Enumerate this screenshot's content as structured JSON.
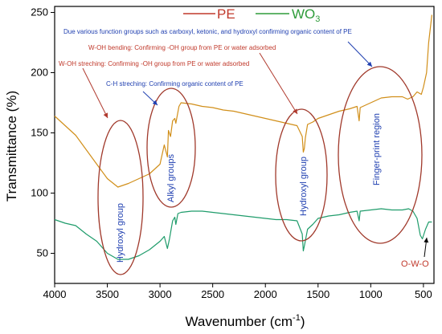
{
  "chart_data": {
    "type": "line",
    "xlabel": "Wavenumber (cm",
    "xlabel_sup": "-1",
    "xlabel_tail": ")",
    "ylabel": "Transmittance (%)",
    "xlim": [
      4000,
      400
    ],
    "ylim": [
      25,
      255
    ],
    "x_reversed": true,
    "xticks": [
      4000,
      3500,
      3000,
      2500,
      2000,
      1500,
      1000,
      500
    ],
    "yticks": [
      50,
      100,
      150,
      200,
      250
    ],
    "grid": false,
    "legend": {
      "placement": "top-center"
    },
    "series": [
      {
        "name": "PE",
        "color": "#d18f1a",
        "legend_color": "#c0392b",
        "points": [
          [
            4000,
            164
          ],
          [
            3900,
            156
          ],
          [
            3800,
            148
          ],
          [
            3700,
            136
          ],
          [
            3600,
            124
          ],
          [
            3500,
            112
          ],
          [
            3400,
            105
          ],
          [
            3300,
            108
          ],
          [
            3200,
            112
          ],
          [
            3100,
            116
          ],
          [
            3000,
            124
          ],
          [
            2960,
            140
          ],
          [
            2930,
            130
          ],
          [
            2920,
            152
          ],
          [
            2900,
            147
          ],
          [
            2880,
            160
          ],
          [
            2860,
            162
          ],
          [
            2850,
            158
          ],
          [
            2820,
            172
          ],
          [
            2800,
            175
          ],
          [
            2700,
            174
          ],
          [
            2600,
            172
          ],
          [
            2500,
            171
          ],
          [
            2400,
            169
          ],
          [
            2300,
            168
          ],
          [
            2200,
            166
          ],
          [
            2100,
            164
          ],
          [
            2000,
            162
          ],
          [
            1900,
            160
          ],
          [
            1800,
            158
          ],
          [
            1700,
            156
          ],
          [
            1650,
            147
          ],
          [
            1640,
            134
          ],
          [
            1630,
            137
          ],
          [
            1620,
            146
          ],
          [
            1600,
            157
          ],
          [
            1550,
            159
          ],
          [
            1500,
            162
          ],
          [
            1400,
            165
          ],
          [
            1300,
            168
          ],
          [
            1200,
            170
          ],
          [
            1130,
            172
          ],
          [
            1110,
            160
          ],
          [
            1100,
            171
          ],
          [
            1000,
            175
          ],
          [
            900,
            179
          ],
          [
            800,
            180
          ],
          [
            700,
            180
          ],
          [
            650,
            178
          ],
          [
            600,
            180
          ],
          [
            560,
            184
          ],
          [
            520,
            182
          ],
          [
            500,
            188
          ],
          [
            470,
            200
          ],
          [
            450,
            225
          ],
          [
            420,
            248
          ]
        ]
      },
      {
        "name": "WO3",
        "name_main": "WO",
        "name_sub": "3",
        "color": "#1f9c6b",
        "legend_color": "#2e9c3a",
        "points": [
          [
            4000,
            78
          ],
          [
            3900,
            75
          ],
          [
            3800,
            73
          ],
          [
            3700,
            66
          ],
          [
            3600,
            60
          ],
          [
            3500,
            50
          ],
          [
            3400,
            45
          ],
          [
            3300,
            45
          ],
          [
            3200,
            48
          ],
          [
            3100,
            53
          ],
          [
            3000,
            60
          ],
          [
            2960,
            64
          ],
          [
            2930,
            54
          ],
          [
            2910,
            62
          ],
          [
            2880,
            77
          ],
          [
            2860,
            80
          ],
          [
            2850,
            74
          ],
          [
            2830,
            83
          ],
          [
            2800,
            84
          ],
          [
            2700,
            85
          ],
          [
            2600,
            85
          ],
          [
            2500,
            84
          ],
          [
            2400,
            83
          ],
          [
            2300,
            82
          ],
          [
            2200,
            81
          ],
          [
            2100,
            80
          ],
          [
            2000,
            79
          ],
          [
            1900,
            78
          ],
          [
            1800,
            78
          ],
          [
            1700,
            77
          ],
          [
            1650,
            66
          ],
          [
            1640,
            52
          ],
          [
            1630,
            56
          ],
          [
            1600,
            70
          ],
          [
            1550,
            74
          ],
          [
            1500,
            79
          ],
          [
            1400,
            81
          ],
          [
            1300,
            82
          ],
          [
            1200,
            84
          ],
          [
            1130,
            85
          ],
          [
            1110,
            77
          ],
          [
            1100,
            85
          ],
          [
            1000,
            86
          ],
          [
            900,
            87
          ],
          [
            800,
            86
          ],
          [
            700,
            86
          ],
          [
            640,
            87
          ],
          [
            600,
            85
          ],
          [
            560,
            79
          ],
          [
            530,
            65
          ],
          [
            510,
            62
          ],
          [
            480,
            70
          ],
          [
            450,
            76
          ],
          [
            420,
            76
          ]
        ]
      }
    ],
    "annotations": [
      {
        "text": "Due various function groups such as carboxyl, ketonic, and hydroxyl confirming organic content of PE",
        "color": "#1f3fb0"
      },
      {
        "text": "W-OH bending: Confirming -OH group from PE or water adsorbed",
        "color": "#c0392b"
      },
      {
        "text": "W-OH streching: Confirming -OH group from PE or water adsorbed",
        "color": "#c0392b"
      },
      {
        "text": "C-H streching: Confirming organic content of PE",
        "color": "#1f3fb0"
      }
    ],
    "regions": [
      {
        "label": "Hydroxyl group",
        "edge_color": "#a0392b"
      },
      {
        "label": "Alkyl groups",
        "edge_color": "#a0392b"
      },
      {
        "label": "Hydroxyl group",
        "edge_color": "#a0392b"
      },
      {
        "label": "Finger-print region",
        "edge_color": "#a0392b"
      }
    ],
    "peak_label": {
      "text": "O-W-O",
      "color": "#c0392b"
    }
  }
}
